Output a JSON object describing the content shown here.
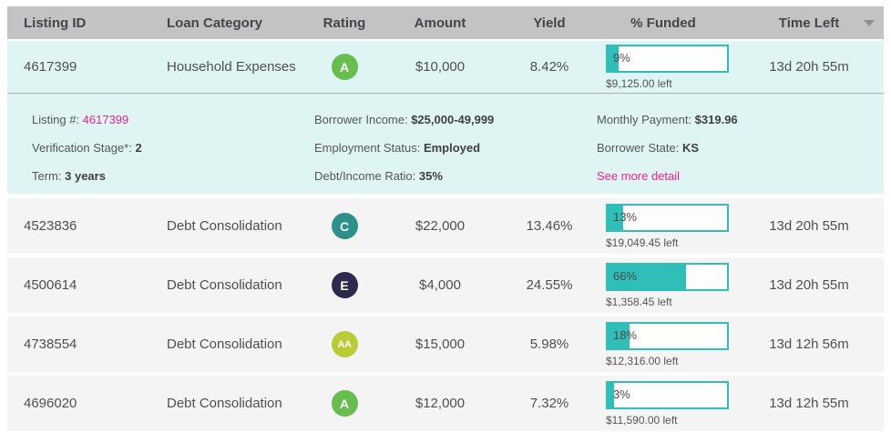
{
  "header": {
    "columns": [
      "Listing ID",
      "Loan Category",
      "Rating",
      "Amount",
      "Yield",
      "% Funded",
      "Time Left"
    ]
  },
  "rows": [
    {
      "listing_id": "4617399",
      "loan_category": "Household Expenses",
      "rating": "A",
      "rating_color": "#67bd4d",
      "amount": "$10,000",
      "yield": "8.42%",
      "funded_pct": 9,
      "funded_pct_label": "9%",
      "amount_left": "$9,125.00 left",
      "time_left": "13d 20h 55m"
    },
    {
      "listing_id": "4523836",
      "loan_category": "Debt Consolidation",
      "rating": "C",
      "rating_color": "#2e908a",
      "amount": "$22,000",
      "yield": "13.46%",
      "funded_pct": 13,
      "funded_pct_label": "13%",
      "amount_left": "$19,049.45 left",
      "time_left": "13d 20h 55m"
    },
    {
      "listing_id": "4500614",
      "loan_category": "Debt Consolidation",
      "rating": "E",
      "rating_color": "#2e2a4d",
      "amount": "$4,000",
      "yield": "24.55%",
      "funded_pct": 66,
      "funded_pct_label": "66%",
      "amount_left": "$1,358.45 left",
      "time_left": "13d 20h 55m"
    },
    {
      "listing_id": "4738554",
      "loan_category": "Debt Consolidation",
      "rating": "AA",
      "rating_color": "#b9cc33",
      "amount": "$15,000",
      "yield": "5.98%",
      "funded_pct": 18,
      "funded_pct_label": "18%",
      "amount_left": "$12,316.00 left",
      "time_left": "13d 12h 56m"
    },
    {
      "listing_id": "4696020",
      "loan_category": "Debt Consolidation",
      "rating": "A",
      "rating_color": "#67bd4d",
      "amount": "$12,000",
      "yield": "7.32%",
      "funded_pct": 3,
      "funded_pct_label": "3%",
      "amount_left": "$11,590.00 left",
      "time_left": "13d 12h 55m"
    }
  ],
  "detail": {
    "left": [
      {
        "label": "Listing #: ",
        "value": "4617399"
      },
      {
        "label": "Verification Stage*: ",
        "value": "2"
      },
      {
        "label": "Term: ",
        "value": "3 years"
      }
    ],
    "middle": [
      {
        "label": "Borrower Income: ",
        "value": "$25,000-49,999"
      },
      {
        "label": "Employment Status: ",
        "value": "Employed"
      },
      {
        "label": "Debt/Income Ratio: ",
        "value": "35%"
      }
    ],
    "right": [
      {
        "label": "Monthly Payment: ",
        "value": "$319.96"
      },
      {
        "label": "Borrower State: ",
        "value": "KS"
      },
      {
        "label": "",
        "value": "See more detail"
      }
    ]
  },
  "colors": {
    "accent_teal": "#2fbeb8",
    "link_pink": "#ed218c",
    "row_highlight_bg": "#def5f4",
    "row_gray_bg": "#f4f4f4",
    "header_bg": "#c3c3c3"
  }
}
